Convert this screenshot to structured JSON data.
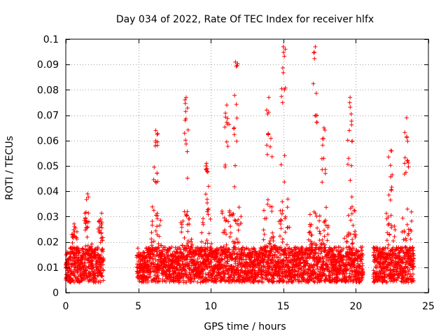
{
  "chart_data": {
    "type": "scatter",
    "title": "Day 034 of 2022, Rate Of TEC Index for receiver hlfx",
    "xlabel": "GPS time / hours",
    "ylabel": "ROTI / TECUs",
    "xlim": [
      0,
      25
    ],
    "ylim": [
      0,
      0.1
    ],
    "x_ticks": [
      "0",
      "5",
      "10",
      "15",
      "20",
      "25"
    ],
    "y_ticks": [
      "0",
      "0.01",
      "0.02",
      "0.03",
      "0.04",
      "0.05",
      "0.06",
      "0.07",
      "0.08",
      "0.09",
      "0.1"
    ],
    "grid": true,
    "marker": "+",
    "color": "#ff0000",
    "data_segments_hours": [
      [
        0,
        2.6
      ],
      [
        4.9,
        20.5
      ],
      [
        21.2,
        24
      ]
    ],
    "peaks": [
      {
        "x": 0.6,
        "y": 0.026
      },
      {
        "x": 1.5,
        "y": 0.039
      },
      {
        "x": 2.4,
        "y": 0.029
      },
      {
        "x": 6.2,
        "y": 0.064
      },
      {
        "x": 8.3,
        "y": 0.077
      },
      {
        "x": 9.7,
        "y": 0.051
      },
      {
        "x": 11.1,
        "y": 0.074
      },
      {
        "x": 11.7,
        "y": 0.091
      },
      {
        "x": 14.0,
        "y": 0.077
      },
      {
        "x": 15.0,
        "y": 0.097
      },
      {
        "x": 17.2,
        "y": 0.097
      },
      {
        "x": 17.8,
        "y": 0.065
      },
      {
        "x": 19.6,
        "y": 0.077
      },
      {
        "x": 22.4,
        "y": 0.056
      },
      {
        "x": 23.5,
        "y": 0.069
      }
    ]
  }
}
